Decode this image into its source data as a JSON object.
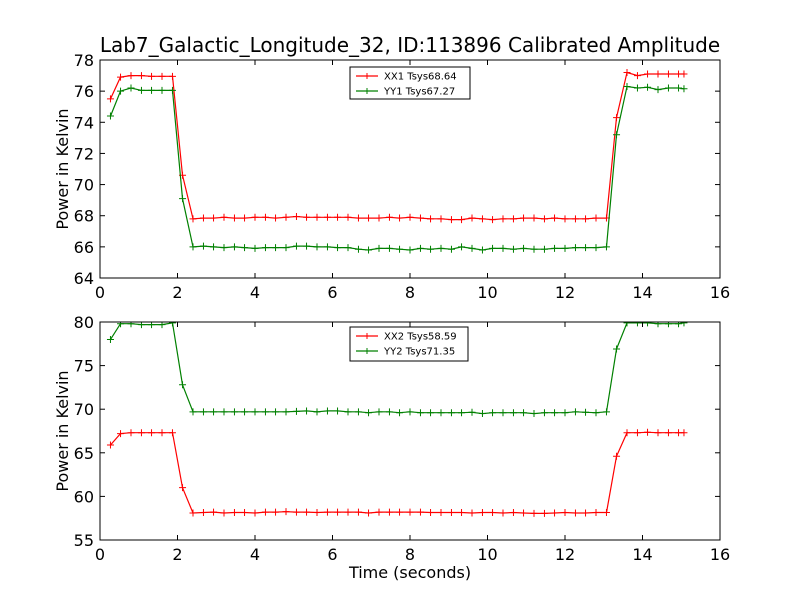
{
  "title": "Lab7_Galactic_Longitude_32, ID:113896 Calibrated Amplitude",
  "colors": {
    "red": "#ff0000",
    "green": "#008000"
  },
  "chart_data": [
    {
      "type": "line",
      "ylabel": "Power in Kelvin",
      "xlabel": "",
      "xlim": [
        0,
        16
      ],
      "ylim": [
        64,
        78
      ],
      "xticks": [
        "0",
        "2",
        "4",
        "6",
        "8",
        "10",
        "12",
        "14",
        "16"
      ],
      "yticks": [
        "64",
        "66",
        "68",
        "70",
        "72",
        "74",
        "76",
        "78"
      ],
      "legend": "top-center",
      "x": [
        0.27,
        0.53,
        0.8,
        1.07,
        1.33,
        1.6,
        1.87,
        2.13,
        2.4,
        2.67,
        2.93,
        3.2,
        3.47,
        3.73,
        4.0,
        4.27,
        4.53,
        4.8,
        5.07,
        5.33,
        5.6,
        5.87,
        6.13,
        6.4,
        6.67,
        6.93,
        7.2,
        7.47,
        7.73,
        8.0,
        8.27,
        8.53,
        8.8,
        9.07,
        9.33,
        9.6,
        9.87,
        10.13,
        10.4,
        10.67,
        10.93,
        11.2,
        11.47,
        11.73,
        12.0,
        12.27,
        12.53,
        12.8,
        13.07,
        13.33,
        13.6,
        13.87,
        14.13,
        14.4,
        14.67,
        14.93,
        15.07
      ],
      "series": [
        {
          "name": "XX1 Tsys68.64",
          "color": "#ff0000",
          "values": [
            75.5,
            76.9,
            77.0,
            77.0,
            76.95,
            76.95,
            76.95,
            70.6,
            67.8,
            67.85,
            67.85,
            67.9,
            67.85,
            67.85,
            67.9,
            67.9,
            67.85,
            67.9,
            67.95,
            67.9,
            67.9,
            67.9,
            67.9,
            67.9,
            67.85,
            67.85,
            67.85,
            67.9,
            67.85,
            67.9,
            67.85,
            67.8,
            67.8,
            67.75,
            67.75,
            67.85,
            67.8,
            67.75,
            67.8,
            67.8,
            67.85,
            67.85,
            67.8,
            67.85,
            67.8,
            67.8,
            67.8,
            67.85,
            67.85,
            74.3,
            77.2,
            77.0,
            77.1,
            77.1,
            77.1,
            77.1,
            77.1
          ]
        },
        {
          "name": "YY1 Tsys67.27",
          "color": "#008000",
          "values": [
            74.4,
            76.0,
            76.2,
            76.05,
            76.05,
            76.05,
            76.05,
            69.1,
            66.0,
            66.05,
            66.0,
            65.95,
            66.0,
            65.95,
            65.9,
            65.95,
            65.95,
            65.95,
            66.05,
            66.05,
            66.0,
            66.0,
            65.95,
            65.95,
            65.85,
            65.8,
            65.9,
            65.9,
            65.85,
            65.8,
            65.9,
            65.85,
            65.9,
            65.85,
            66.0,
            65.9,
            65.8,
            65.9,
            65.9,
            65.85,
            65.9,
            65.85,
            65.85,
            65.9,
            65.9,
            65.95,
            65.95,
            65.95,
            66.0,
            73.2,
            76.3,
            76.2,
            76.25,
            76.1,
            76.2,
            76.2,
            76.15
          ]
        }
      ]
    },
    {
      "type": "line",
      "ylabel": "Power in Kelvin",
      "xlabel": "Time (seconds)",
      "xlim": [
        0,
        16
      ],
      "ylim": [
        55,
        80
      ],
      "xticks": [
        "0",
        "2",
        "4",
        "6",
        "8",
        "10",
        "12",
        "14",
        "16"
      ],
      "yticks": [
        "55",
        "60",
        "65",
        "70",
        "75",
        "80"
      ],
      "legend": "top-center",
      "x": [
        0.27,
        0.53,
        0.8,
        1.07,
        1.33,
        1.6,
        1.87,
        2.13,
        2.4,
        2.67,
        2.93,
        3.2,
        3.47,
        3.73,
        4.0,
        4.27,
        4.53,
        4.8,
        5.07,
        5.33,
        5.6,
        5.87,
        6.13,
        6.4,
        6.67,
        6.93,
        7.2,
        7.47,
        7.73,
        8.0,
        8.27,
        8.53,
        8.8,
        9.07,
        9.33,
        9.6,
        9.87,
        10.13,
        10.4,
        10.67,
        10.93,
        11.2,
        11.47,
        11.73,
        12.0,
        12.27,
        12.53,
        12.8,
        13.07,
        13.33,
        13.6,
        13.87,
        14.13,
        14.4,
        14.67,
        14.93,
        15.07
      ],
      "series": [
        {
          "name": "XX2 Tsys58.59",
          "color": "#ff0000",
          "values": [
            65.9,
            67.2,
            67.3,
            67.3,
            67.3,
            67.3,
            67.3,
            61.0,
            58.1,
            58.15,
            58.2,
            58.1,
            58.15,
            58.15,
            58.1,
            58.2,
            58.2,
            58.25,
            58.2,
            58.2,
            58.15,
            58.2,
            58.2,
            58.2,
            58.2,
            58.1,
            58.2,
            58.2,
            58.2,
            58.2,
            58.2,
            58.15,
            58.15,
            58.15,
            58.15,
            58.1,
            58.15,
            58.15,
            58.1,
            58.15,
            58.1,
            58.05,
            58.05,
            58.1,
            58.15,
            58.1,
            58.1,
            58.15,
            58.15,
            64.6,
            67.3,
            67.3,
            67.35,
            67.3,
            67.3,
            67.3,
            67.3
          ]
        },
        {
          "name": "YY2 Tsys71.35",
          "color": "#008000",
          "values": [
            78.0,
            79.8,
            79.8,
            79.7,
            79.7,
            79.7,
            79.9,
            72.8,
            69.7,
            69.7,
            69.7,
            69.7,
            69.7,
            69.7,
            69.7,
            69.7,
            69.7,
            69.7,
            69.75,
            69.8,
            69.7,
            69.8,
            69.8,
            69.7,
            69.7,
            69.6,
            69.7,
            69.7,
            69.6,
            69.7,
            69.6,
            69.6,
            69.6,
            69.6,
            69.6,
            69.65,
            69.5,
            69.6,
            69.6,
            69.6,
            69.6,
            69.5,
            69.6,
            69.6,
            69.6,
            69.7,
            69.65,
            69.6,
            69.7,
            76.9,
            79.9,
            79.9,
            79.9,
            79.8,
            79.8,
            79.8,
            79.9
          ]
        }
      ]
    }
  ]
}
